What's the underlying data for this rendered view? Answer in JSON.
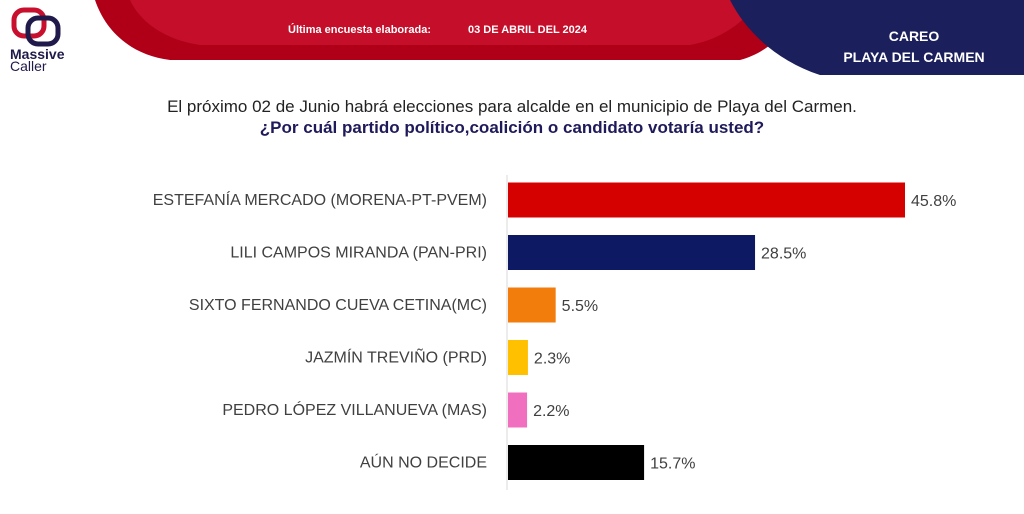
{
  "header": {
    "survey_label": "Última encuesta elaborada:",
    "survey_date": "03 DE ABRIL DEL 2024",
    "brand_line1": "Massive",
    "brand_line2": "Caller",
    "careo_line1": "CAREO",
    "careo_line2": "PLAYA DEL CARMEN",
    "colors": {
      "red": "#c0001a",
      "navy": "#1b1f5c"
    }
  },
  "question": {
    "line1": "El próximo 02 de Junio habrá elecciones para alcalde en el municipio de  Playa del Carmen.",
    "line2": "¿Por cuál partido político,coalición  o candidato votaría usted?"
  },
  "chart_data": {
    "type": "bar",
    "orientation": "horizontal",
    "categories": [
      "ESTEFANÍA MERCADO (MORENA-PT-PVEM)",
      "LILI CAMPOS MIRANDA (PAN-PRI)",
      "SIXTO FERNANDO CUEVA CETINA(MC)",
      "JAZMÍN TREVIÑO (PRD)",
      "PEDRO LÓPEZ VILLANUEVA (MAS)",
      "AÚN NO DECIDE"
    ],
    "values": [
      45.8,
      28.5,
      5.5,
      2.3,
      2.2,
      15.7
    ],
    "data_labels": [
      "45.8%",
      "28.5%",
      "5.5%",
      "2.3%",
      "2.2%",
      "15.7%"
    ],
    "colors": [
      "#d50000",
      "#0d1a63",
      "#f27d0c",
      "#ffc000",
      "#f06fbf",
      "#000000"
    ],
    "xlim": [
      0,
      50
    ],
    "grid": false,
    "legend": "none"
  }
}
